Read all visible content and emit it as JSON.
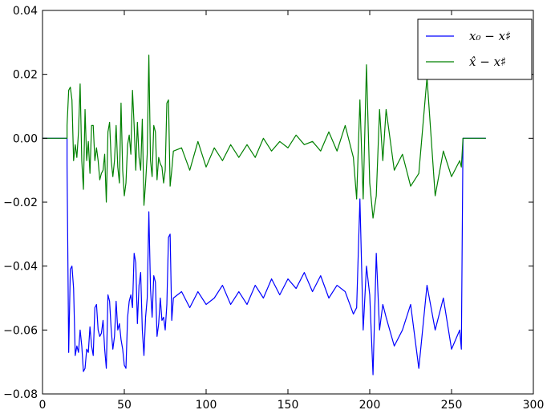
{
  "chart_data": {
    "type": "line",
    "title": "",
    "xlabel": "",
    "ylabel": "",
    "xlim": [
      0,
      300
    ],
    "ylim": [
      -0.08,
      0.04
    ],
    "x_ticks": [
      0,
      50,
      100,
      150,
      200,
      250,
      300
    ],
    "y_ticks": [
      0.04,
      0.02,
      0.0,
      -0.02,
      -0.04,
      -0.06,
      -0.08
    ],
    "x_tick_labels": [
      "0",
      "50",
      "100",
      "150",
      "200",
      "250",
      "300"
    ],
    "y_tick_labels": [
      "0.04",
      "0.02",
      "0.00",
      "−0.02",
      "−0.04",
      "−0.06",
      "−0.08"
    ],
    "grid": false,
    "legend_position": "top-right",
    "series": [
      {
        "name": "x₀ − x♯",
        "color": "#0000ff",
        "note_shape": "0 for x<15 and x>257, otherwise noisy values",
        "keypoints": [
          [
            0,
            0.0
          ],
          [
            15,
            0.0
          ],
          [
            15,
            -0.008
          ],
          [
            16,
            -0.067
          ],
          [
            17,
            -0.041
          ],
          [
            18,
            -0.04
          ],
          [
            19,
            -0.047
          ],
          [
            20,
            -0.068
          ],
          [
            21,
            -0.065
          ],
          [
            22,
            -0.067
          ],
          [
            23,
            -0.06
          ],
          [
            24,
            -0.065
          ],
          [
            25,
            -0.073
          ],
          [
            26,
            -0.072
          ],
          [
            27,
            -0.066
          ],
          [
            28,
            -0.067
          ],
          [
            29,
            -0.059
          ],
          [
            30,
            -0.065
          ],
          [
            31,
            -0.068
          ],
          [
            32,
            -0.053
          ],
          [
            33,
            -0.052
          ],
          [
            34,
            -0.06
          ],
          [
            35,
            -0.062
          ],
          [
            36,
            -0.061
          ],
          [
            37,
            -0.057
          ],
          [
            38,
            -0.066
          ],
          [
            39,
            -0.072
          ],
          [
            40,
            -0.049
          ],
          [
            41,
            -0.051
          ],
          [
            42,
            -0.06
          ],
          [
            43,
            -0.066
          ],
          [
            44,
            -0.062
          ],
          [
            45,
            -0.051
          ],
          [
            46,
            -0.06
          ],
          [
            47,
            -0.058
          ],
          [
            48,
            -0.063
          ],
          [
            49,
            -0.066
          ],
          [
            50,
            -0.071
          ],
          [
            51,
            -0.072
          ],
          [
            52,
            -0.056
          ],
          [
            53,
            -0.051
          ],
          [
            54,
            -0.049
          ],
          [
            55,
            -0.053
          ],
          [
            56,
            -0.036
          ],
          [
            57,
            -0.039
          ],
          [
            58,
            -0.058
          ],
          [
            59,
            -0.046
          ],
          [
            60,
            -0.042
          ],
          [
            61,
            -0.06
          ],
          [
            62,
            -0.068
          ],
          [
            63,
            -0.056
          ],
          [
            64,
            -0.05
          ],
          [
            65,
            -0.023
          ],
          [
            66,
            -0.047
          ],
          [
            67,
            -0.056
          ],
          [
            68,
            -0.043
          ],
          [
            69,
            -0.045
          ],
          [
            70,
            -0.062
          ],
          [
            71,
            -0.058
          ],
          [
            72,
            -0.05
          ],
          [
            73,
            -0.057
          ],
          [
            74,
            -0.056
          ],
          [
            75,
            -0.06
          ],
          [
            76,
            -0.052
          ],
          [
            77,
            -0.031
          ],
          [
            78,
            -0.03
          ],
          [
            79,
            -0.057
          ],
          [
            80,
            -0.05
          ],
          [
            85,
            -0.048
          ],
          [
            90,
            -0.053
          ],
          [
            95,
            -0.048
          ],
          [
            100,
            -0.052
          ],
          [
            105,
            -0.05
          ],
          [
            110,
            -0.046
          ],
          [
            115,
            -0.052
          ],
          [
            120,
            -0.048
          ],
          [
            125,
            -0.052
          ],
          [
            130,
            -0.046
          ],
          [
            135,
            -0.05
          ],
          [
            140,
            -0.044
          ],
          [
            145,
            -0.049
          ],
          [
            150,
            -0.044
          ],
          [
            155,
            -0.047
          ],
          [
            160,
            -0.042
          ],
          [
            165,
            -0.048
          ],
          [
            170,
            -0.043
          ],
          [
            175,
            -0.05
          ],
          [
            180,
            -0.046
          ],
          [
            185,
            -0.048
          ],
          [
            190,
            -0.055
          ],
          [
            192,
            -0.053
          ],
          [
            194,
            -0.019
          ],
          [
            196,
            -0.06
          ],
          [
            198,
            -0.04
          ],
          [
            200,
            -0.049
          ],
          [
            202,
            -0.074
          ],
          [
            204,
            -0.036
          ],
          [
            206,
            -0.06
          ],
          [
            208,
            -0.052
          ],
          [
            210,
            -0.056
          ],
          [
            215,
            -0.065
          ],
          [
            220,
            -0.06
          ],
          [
            225,
            -0.052
          ],
          [
            230,
            -0.072
          ],
          [
            235,
            -0.046
          ],
          [
            240,
            -0.06
          ],
          [
            245,
            -0.05
          ],
          [
            250,
            -0.066
          ],
          [
            255,
            -0.06
          ],
          [
            256,
            -0.066
          ],
          [
            257,
            0.0
          ],
          [
            271,
            0.0
          ]
        ]
      },
      {
        "name": "x̂ − x♯",
        "color": "#008000",
        "keypoints": [
          [
            0,
            0.0
          ],
          [
            15,
            0.0
          ],
          [
            15,
            0.004
          ],
          [
            16,
            0.015
          ],
          [
            17,
            0.016
          ],
          [
            18,
            0.012
          ],
          [
            19,
            -0.007
          ],
          [
            20,
            -0.002
          ],
          [
            21,
            -0.006
          ],
          [
            22,
            0.002
          ],
          [
            23,
            0.017
          ],
          [
            24,
            -0.007
          ],
          [
            25,
            -0.016
          ],
          [
            26,
            0.009
          ],
          [
            27,
            -0.007
          ],
          [
            28,
            -0.001
          ],
          [
            29,
            -0.011
          ],
          [
            30,
            0.004
          ],
          [
            31,
            0.004
          ],
          [
            32,
            -0.007
          ],
          [
            33,
            -0.003
          ],
          [
            34,
            -0.007
          ],
          [
            35,
            -0.013
          ],
          [
            36,
            -0.011
          ],
          [
            37,
            -0.01
          ],
          [
            38,
            -0.005
          ],
          [
            39,
            -0.02
          ],
          [
            40,
            0.002
          ],
          [
            41,
            0.005
          ],
          [
            42,
            -0.007
          ],
          [
            43,
            -0.012
          ],
          [
            44,
            -0.007
          ],
          [
            45,
            0.004
          ],
          [
            46,
            -0.009
          ],
          [
            47,
            -0.014
          ],
          [
            48,
            0.011
          ],
          [
            49,
            -0.01
          ],
          [
            50,
            -0.018
          ],
          [
            51,
            -0.014
          ],
          [
            52,
            -0.002
          ],
          [
            53,
            0.001
          ],
          [
            54,
            -0.005
          ],
          [
            55,
            0.015
          ],
          [
            56,
            0.004
          ],
          [
            57,
            -0.01
          ],
          [
            58,
            0.005
          ],
          [
            59,
            -0.006
          ],
          [
            60,
            -0.01
          ],
          [
            61,
            0.006
          ],
          [
            62,
            -0.021
          ],
          [
            63,
            -0.014
          ],
          [
            64,
            -0.005
          ],
          [
            65,
            0.026
          ],
          [
            66,
            -0.007
          ],
          [
            67,
            -0.012
          ],
          [
            68,
            0.004
          ],
          [
            69,
            0.002
          ],
          [
            70,
            -0.013
          ],
          [
            71,
            -0.006
          ],
          [
            72,
            -0.008
          ],
          [
            73,
            -0.009
          ],
          [
            74,
            -0.014
          ],
          [
            75,
            -0.01
          ],
          [
            76,
            0.011
          ],
          [
            77,
            0.012
          ],
          [
            78,
            -0.015
          ],
          [
            79,
            -0.01
          ],
          [
            80,
            -0.004
          ],
          [
            85,
            -0.003
          ],
          [
            90,
            -0.01
          ],
          [
            95,
            -0.001
          ],
          [
            100,
            -0.009
          ],
          [
            105,
            -0.003
          ],
          [
            110,
            -0.007
          ],
          [
            115,
            -0.002
          ],
          [
            120,
            -0.006
          ],
          [
            125,
            -0.002
          ],
          [
            130,
            -0.006
          ],
          [
            135,
            0.0
          ],
          [
            140,
            -0.004
          ],
          [
            145,
            -0.001
          ],
          [
            150,
            -0.003
          ],
          [
            155,
            0.001
          ],
          [
            160,
            -0.002
          ],
          [
            165,
            -0.001
          ],
          [
            170,
            -0.004
          ],
          [
            175,
            0.002
          ],
          [
            180,
            -0.004
          ],
          [
            185,
            0.004
          ],
          [
            190,
            -0.006
          ],
          [
            192,
            -0.019
          ],
          [
            194,
            0.012
          ],
          [
            196,
            -0.019
          ],
          [
            198,
            0.023
          ],
          [
            200,
            -0.014
          ],
          [
            202,
            -0.025
          ],
          [
            204,
            -0.018
          ],
          [
            206,
            0.009
          ],
          [
            208,
            -0.007
          ],
          [
            210,
            0.009
          ],
          [
            215,
            -0.01
          ],
          [
            220,
            -0.005
          ],
          [
            225,
            -0.015
          ],
          [
            230,
            -0.011
          ],
          [
            235,
            0.019
          ],
          [
            240,
            -0.018
          ],
          [
            245,
            -0.004
          ],
          [
            250,
            -0.012
          ],
          [
            255,
            -0.007
          ],
          [
            256,
            -0.009
          ],
          [
            257,
            0.0
          ],
          [
            271,
            0.0
          ]
        ]
      }
    ]
  }
}
